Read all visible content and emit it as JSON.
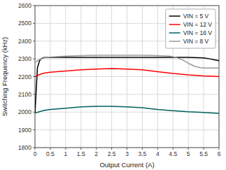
{
  "chart_data": {
    "type": "line",
    "xlabel": "Output Current (A)",
    "ylabel": "Switching Frequency (kHz)",
    "xlim": [
      0,
      6
    ],
    "ylim": [
      1800,
      2600
    ],
    "xticks": [
      0,
      0.5,
      1,
      1.5,
      2,
      2.5,
      3,
      3.5,
      4,
      4.5,
      5,
      5.5,
      6
    ],
    "yticks": [
      1800,
      1900,
      2000,
      2100,
      2200,
      2300,
      2400,
      2500,
      2600
    ],
    "grid": true,
    "legend": "upper right",
    "series": [
      {
        "name": "VIN = 5 V",
        "color": "#000000",
        "x": [
          0.0,
          0.08,
          0.15,
          0.2,
          0.25,
          0.3,
          0.4,
          0.5,
          0.6,
          0.7,
          0.8,
          0.9,
          1.0,
          1.5,
          2.0,
          2.5,
          3.0,
          3.5,
          4.0,
          4.5,
          5.0,
          5.5,
          5.7,
          5.85,
          6.0
        ],
        "values": [
          1995,
          2250,
          2290,
          2300,
          2305,
          2307,
          2308,
          2308,
          2308,
          2308,
          2308,
          2308,
          2308,
          2308,
          2308,
          2308,
          2308,
          2308,
          2308,
          2308,
          2308,
          2305,
          2300,
          2295,
          2290
        ]
      },
      {
        "name": "VIN = 12 V",
        "color": "#ff0000",
        "x": [
          0.0,
          0.1,
          0.2,
          0.3,
          0.5,
          0.7,
          1.0,
          1.5,
          2.0,
          2.5,
          3.0,
          3.5,
          4.0,
          4.5,
          5.0,
          5.5,
          5.8,
          6.0
        ],
        "values": [
          2200,
          2208,
          2215,
          2220,
          2225,
          2228,
          2232,
          2238,
          2242,
          2245,
          2242,
          2238,
          2228,
          2218,
          2210,
          2204,
          2202,
          2200
        ]
      },
      {
        "name": "VIN = 16 V",
        "color": "#006060",
        "x": [
          0.0,
          0.1,
          0.2,
          0.3,
          0.5,
          0.7,
          1.0,
          1.5,
          2.0,
          2.5,
          3.0,
          3.5,
          4.0,
          4.5,
          5.0,
          5.5,
          5.8,
          6.0
        ],
        "values": [
          1995,
          2000,
          2005,
          2010,
          2015,
          2018,
          2022,
          2030,
          2033,
          2033,
          2030,
          2025,
          2015,
          2008,
          2002,
          1998,
          1995,
          1992
        ]
      },
      {
        "name": "VIN = 8 V",
        "color": "#999999",
        "x": [
          0.0,
          0.1,
          0.2,
          0.3,
          0.5,
          0.7,
          1.0,
          1.5,
          2.0,
          2.5,
          3.0,
          3.5,
          4.0,
          4.4,
          4.6,
          4.8,
          5.0,
          5.2,
          5.4,
          5.6,
          5.8,
          6.0
        ],
        "values": [
          2278,
          2292,
          2300,
          2305,
          2310,
          2312,
          2315,
          2318,
          2320,
          2320,
          2320,
          2320,
          2318,
          2315,
          2308,
          2295,
          2275,
          2258,
          2250,
          2248,
          2248,
          2248
        ]
      }
    ]
  }
}
